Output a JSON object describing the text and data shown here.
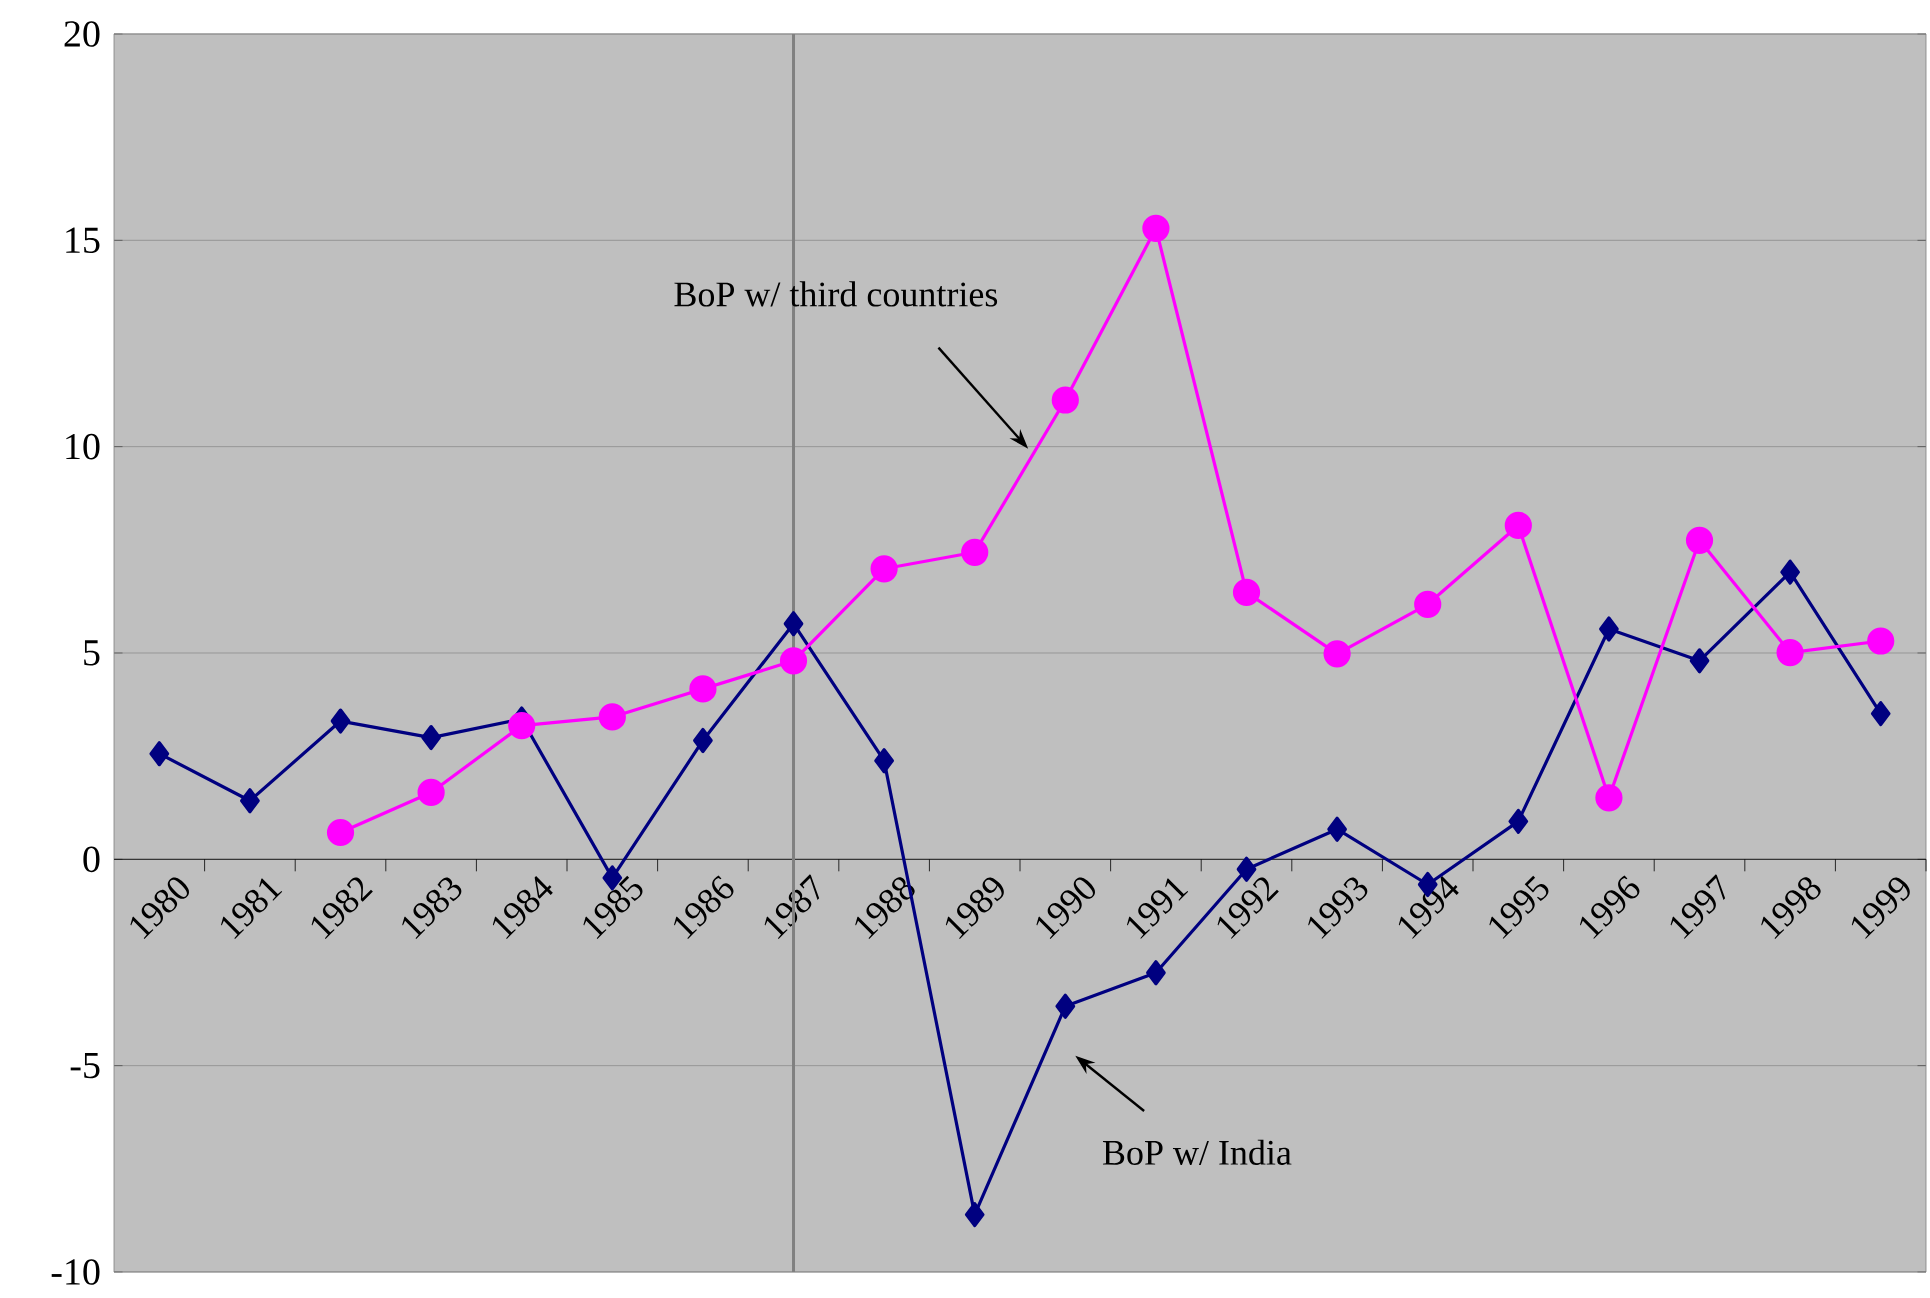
{
  "chart_data": {
    "type": "line",
    "categories": [
      "1980",
      "1981",
      "1982",
      "1983",
      "1984",
      "1985",
      "1986",
      "1987",
      "1988",
      "1989",
      "1990",
      "1991",
      "1992",
      "1993",
      "1994",
      "1995",
      "1996",
      "1997",
      "1998",
      "1999"
    ],
    "series": [
      {
        "name": "BoP w/ India",
        "color": "#000080",
        "marker": "diamond",
        "values": [
          2.56,
          1.42,
          3.35,
          2.95,
          3.4,
          -0.45,
          2.88,
          5.71,
          2.39,
          -8.61,
          -3.56,
          -2.75,
          -0.24,
          0.73,
          -0.61,
          0.92,
          5.58,
          4.81,
          6.96,
          3.53
        ]
      },
      {
        "name": "BoP w/ third countries",
        "color": "#ff00ff",
        "marker": "circle",
        "values": [
          null,
          null,
          0.65,
          1.62,
          3.24,
          3.45,
          4.13,
          4.81,
          7.04,
          7.44,
          11.13,
          15.29,
          6.47,
          4.98,
          6.18,
          8.09,
          1.49,
          7.73,
          5.01,
          5.29
        ]
      }
    ],
    "ylim": [
      -10,
      20
    ],
    "yticks": [
      -10,
      -5,
      0,
      5,
      10,
      15,
      20
    ],
    "grid": "y",
    "ref_lines": [
      {
        "axis": "x",
        "value": "1987",
        "color": "#808080"
      }
    ]
  }
}
